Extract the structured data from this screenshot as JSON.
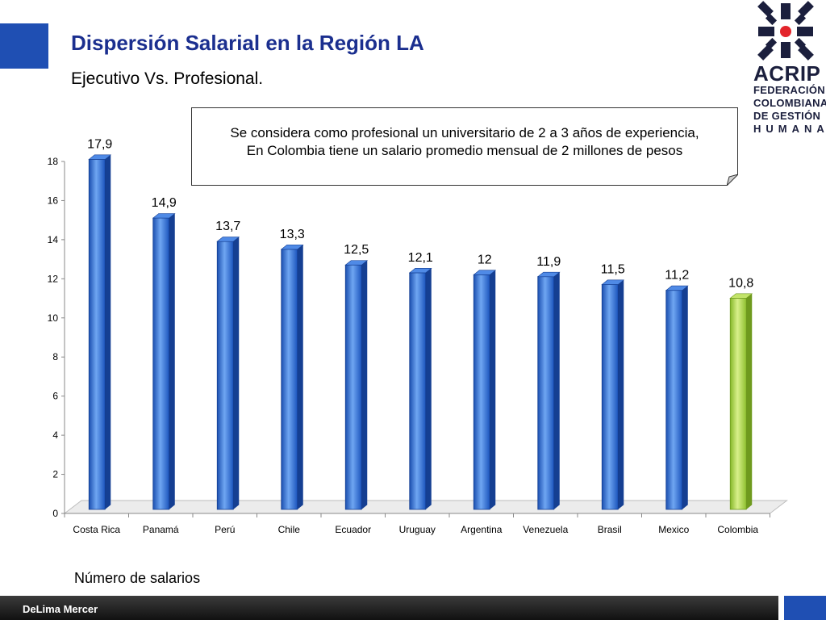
{
  "slide": {
    "title": "Dispersión Salarial en la Región LA",
    "subtitle": "Ejecutivo Vs. Profesional.",
    "note_line1": "Se considera como profesional un universitario de 2 a 3 años de experiencia,",
    "note_line2": "En Colombia tiene un salario promedio mensual de  2 millones de pesos",
    "bottom_label": "Número de salarios",
    "footer_brand": "DeLima Mercer"
  },
  "logo": {
    "name": "ACRIP",
    "line1": "FEDERACIÓN",
    "line2": "COLOMBIANA",
    "line3": "DE GESTIÓN",
    "line4": "HUMANA"
  },
  "colors": {
    "accent": "#1f4fb3",
    "bar_blue": "#2f6fd8",
    "bar_highlight": "#9ccc3c",
    "title": "#1b2f8f"
  },
  "chart_data": {
    "type": "bar",
    "categories": [
      "Costa Rica",
      "Panamá",
      "Perú",
      "Chile",
      "Ecuador",
      "Uruguay",
      "Argentina",
      "Venezuela",
      "Brasil",
      "Mexico",
      "Colombia"
    ],
    "values": [
      17.9,
      14.9,
      13.7,
      13.3,
      12.5,
      12.1,
      12,
      11.9,
      11.5,
      11.2,
      10.8
    ],
    "value_labels": [
      "17,9",
      "14,9",
      "13,7",
      "13,3",
      "12,5",
      "12,1",
      "12",
      "11,9",
      "11,5",
      "11,2",
      "10,8"
    ],
    "highlight_category": "Colombia",
    "ylim": [
      0,
      18
    ],
    "yticks": [
      0,
      2,
      4,
      6,
      8,
      10,
      12,
      14,
      16,
      18
    ],
    "grid": false,
    "legend": "none"
  }
}
